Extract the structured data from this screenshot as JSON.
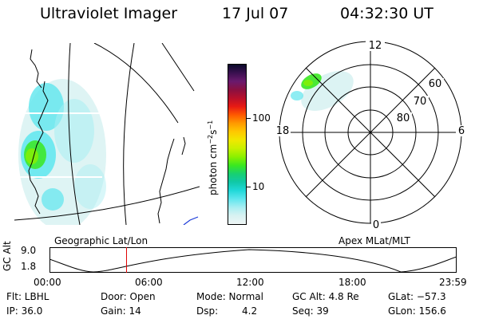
{
  "header": {
    "instrument": "Ultraviolet Imager",
    "date": "17 Jul 07",
    "time": "04:32:30 UT"
  },
  "colorbar": {
    "unit_label": "photon cm",
    "unit_exp1": "−2",
    "unit_mid": "s",
    "unit_exp2": "−1",
    "ticks": [
      "100",
      "10"
    ],
    "colors": [
      "#0a0a2a",
      "#3a1050",
      "#6a1a6e",
      "#8a1040",
      "#b8102a",
      "#e81a14",
      "#ff5a00",
      "#ff9a00",
      "#ffc800",
      "#f0e800",
      "#c8f000",
      "#8af000",
      "#3ae820",
      "#18d070",
      "#10c8a8",
      "#20d8d8",
      "#5ee6ee",
      "#a8eef2",
      "#d8f2f2",
      "#eef5f5"
    ]
  },
  "left_map": {
    "caption": "Geographic Lat/Lon"
  },
  "polar_plot": {
    "caption": "Apex MLat/MLT",
    "mlt_labels": [
      "12",
      "18",
      "6",
      "0"
    ],
    "lat_labels": [
      "60",
      "70",
      "80"
    ]
  },
  "altitude_strip": {
    "ylabel": "GC Alt",
    "yticks": [
      "9.0",
      "1.8"
    ],
    "xticks": [
      "00:00",
      "06:00",
      "12:00",
      "18:00",
      "23:59"
    ],
    "marker_hour": 4.54
  },
  "info": {
    "flt": "Flt: LBHL",
    "ip": "IP: 36.0",
    "door": "Door: Open",
    "gain": "Gain: 14",
    "mode": "Mode: Normal",
    "dsp_label": "Dsp:",
    "dsp_value": "4.2",
    "gc_alt": "GC Alt: 4.8 Re",
    "seq": "Seq: 39",
    "glat": "GLat: −57.3",
    "glon": "GLon: 156.6"
  },
  "colors": {
    "marker": "#e00000",
    "coast_blue": "#1a3ad8",
    "grid": "#000000"
  }
}
